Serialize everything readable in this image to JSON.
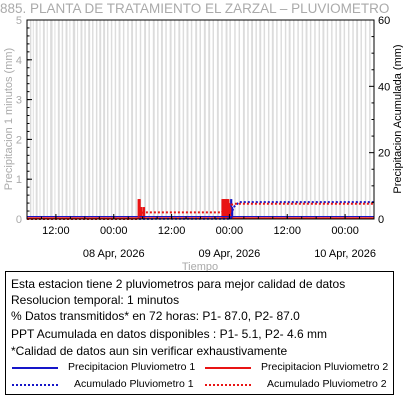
{
  "chart_data": {
    "type": "bar",
    "title": "885. PLANTA DE TRATAMIENTO EL ZARZAL – PLUVIOMETRO",
    "xlabel": "Tiempo",
    "ylabel_left": "Precipitacion 1 minutos (mm)",
    "ylabel_right": "Precipitacion Acumulada (mm)",
    "ylim_left": [
      0,
      5
    ],
    "ylim_right": [
      0,
      60
    ],
    "yticks_left": [
      "0",
      "1",
      "2",
      "3",
      "4",
      "5"
    ],
    "yticks_right": [
      "0",
      "20",
      "40",
      "60"
    ],
    "x_range_hours": [
      0,
      72
    ],
    "xticks": [
      {
        "h": 6,
        "label": "12:00"
      },
      {
        "h": 18,
        "label": "00:00"
      },
      {
        "h": 30,
        "label": "12:00"
      },
      {
        "h": 42,
        "label": "00:00"
      },
      {
        "h": 54,
        "label": "12:00"
      },
      {
        "h": 66,
        "label": "00:00"
      }
    ],
    "date_labels": [
      {
        "h": 18,
        "label": "08 Apr, 2026"
      },
      {
        "h": 42,
        "label": "09 Apr, 2026"
      },
      {
        "h": 66,
        "label": "10 Apr, 2026"
      }
    ],
    "missing_data_bands_hours": [
      [
        0.6,
        0.9
      ],
      [
        1.2,
        1.4
      ],
      [
        1.8,
        2.2
      ],
      [
        2.6,
        2.8
      ],
      [
        3.3,
        3.7
      ],
      [
        4.1,
        4.3
      ],
      [
        4.8,
        5.3
      ],
      [
        5.7,
        5.9
      ],
      [
        6.4,
        6.8
      ],
      [
        7.2,
        7.5
      ],
      [
        8.0,
        8.4
      ],
      [
        8.8,
        9.0
      ],
      [
        9.5,
        10.0
      ],
      [
        10.4,
        10.6
      ],
      [
        11.1,
        11.5
      ],
      [
        11.9,
        12.2
      ],
      [
        12.7,
        13.1
      ],
      [
        13.5,
        13.8
      ],
      [
        14.3,
        14.6
      ],
      [
        15.0,
        15.4
      ],
      [
        15.8,
        16.2
      ],
      [
        16.6,
        16.9
      ],
      [
        17.4,
        17.7
      ],
      [
        18.2,
        18.5
      ],
      [
        19.0,
        19.4
      ],
      [
        19.9,
        20.2
      ],
      [
        20.8,
        21.1
      ],
      [
        21.6,
        22.0
      ],
      [
        22.5,
        22.8
      ],
      [
        23.4,
        23.7
      ],
      [
        24.3,
        24.7
      ],
      [
        25.2,
        25.5
      ],
      [
        26.1,
        26.5
      ],
      [
        27.0,
        27.3
      ],
      [
        27.8,
        28.2
      ],
      [
        28.7,
        29.0
      ],
      [
        29.6,
        30.0
      ],
      [
        30.5,
        30.8
      ],
      [
        31.4,
        31.8
      ],
      [
        32.3,
        32.6
      ],
      [
        33.1,
        33.5
      ],
      [
        34.0,
        34.3
      ],
      [
        34.9,
        35.3
      ],
      [
        35.8,
        36.1
      ],
      [
        36.7,
        37.1
      ],
      [
        37.6,
        38.0
      ],
      [
        38.5,
        38.8
      ],
      [
        39.4,
        39.8
      ],
      [
        40.3,
        40.6
      ],
      [
        41.2,
        41.6
      ],
      [
        42.0,
        42.3
      ],
      [
        43.0,
        43.3
      ],
      [
        43.9,
        44.2
      ],
      [
        44.8,
        45.2
      ],
      [
        45.7,
        46.0
      ],
      [
        46.5,
        46.9
      ],
      [
        47.4,
        47.7
      ],
      [
        48.2,
        48.6
      ],
      [
        49.1,
        49.4
      ],
      [
        50.0,
        50.3
      ],
      [
        50.8,
        51.2
      ],
      [
        51.7,
        52.0
      ],
      [
        52.6,
        52.9
      ],
      [
        53.5,
        53.8
      ],
      [
        54.3,
        54.7
      ],
      [
        55.2,
        55.5
      ],
      [
        56.1,
        56.4
      ],
      [
        57.0,
        57.3
      ],
      [
        57.8,
        58.2
      ],
      [
        58.7,
        59.0
      ],
      [
        59.6,
        59.9
      ],
      [
        60.5,
        60.8
      ],
      [
        61.3,
        61.7
      ],
      [
        62.2,
        62.5
      ],
      [
        63.1,
        63.4
      ],
      [
        64.0,
        64.3
      ],
      [
        64.8,
        65.2
      ],
      [
        65.7,
        66.0
      ],
      [
        66.6,
        66.9
      ],
      [
        67.5,
        67.8
      ],
      [
        68.3,
        68.7
      ],
      [
        69.2,
        69.5
      ],
      [
        70.1,
        70.4
      ],
      [
        71.0,
        71.3
      ]
    ],
    "series": [
      {
        "name": "Precipitacion Pluviometro 1",
        "kind": "bar",
        "color": "#1515c8",
        "x_hours": [
          42.35,
          42.55
        ],
        "values": [
          0.5,
          0.3
        ]
      },
      {
        "name": "Precipitacion Pluviometro 2",
        "kind": "bar",
        "color": "#e81414",
        "x_hours": [
          23.15,
          23.35,
          23.55,
          23.75,
          24.25,
          40.55,
          40.75,
          40.95,
          41.15,
          41.35,
          41.55,
          41.75,
          41.95,
          42.15
        ],
        "values": [
          0.5,
          0.5,
          0.3,
          0.3,
          0.3,
          0.5,
          0.5,
          0.5,
          0.5,
          0.5,
          0.5,
          0.5,
          0.4,
          0.3
        ]
      },
      {
        "name": "Acumulado Pluviometro 1",
        "kind": "line",
        "dash": "dotted",
        "color": "#1515c8",
        "x_hours": [
          0,
          42.3,
          42.5,
          42.8,
          44,
          72
        ],
        "values": [
          0,
          0.1,
          1.5,
          3.5,
          5.1,
          5.1
        ]
      },
      {
        "name": "Acumulado Pluviometro 2",
        "kind": "line",
        "dash": "dotted",
        "color": "#e81414",
        "x_hours": [
          0,
          23.1,
          23.3,
          24.5,
          40.4,
          41,
          42,
          43,
          72
        ],
        "values": [
          0,
          0,
          1.8,
          2.0,
          2.0,
          3.0,
          4.0,
          4.6,
          4.6
        ]
      }
    ]
  },
  "info": {
    "line1": "Esta estacion tiene 2 pluviometros para mejor calidad de datos",
    "line2": "Resolucion temporal: 1 minutos",
    "line3": "% Datos transmitidos* en 72 horas: P1- 87.0, P2- 87.0",
    "line4": "PPT Acumulada en datos disponibles : P1-  5.1, P2-  4.6 mm",
    "line5": "*Calidad de datos aun sin verificar exhaustivamente"
  },
  "legend": {
    "p1_bar": "Precipitacion Pluviometro 1",
    "p2_bar": "Precipitacion Pluviometro 2",
    "p1_acc": "Acumulado Pluviometro 1",
    "p2_acc": "Acumulado Pluviometro 2",
    "p1_color": "#1515c8",
    "p2_color": "#e81414"
  }
}
